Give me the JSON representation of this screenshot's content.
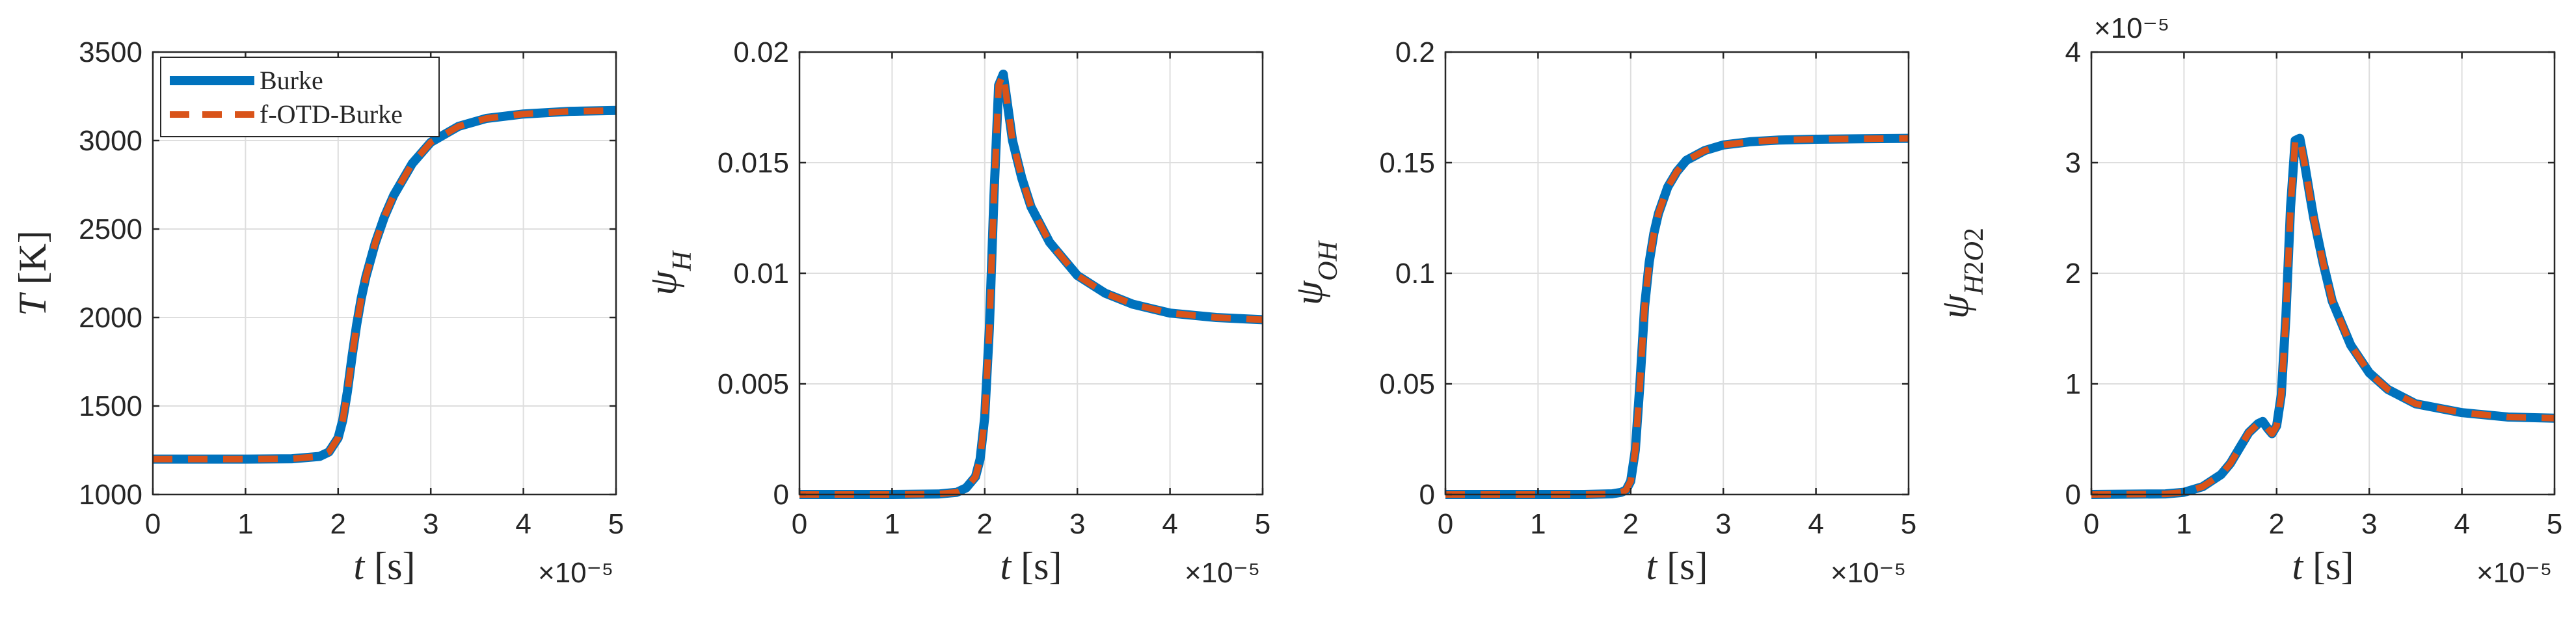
{
  "colors": {
    "burke": "#0072BD",
    "fotd": "#D95319",
    "grid": "#dedede",
    "axis": "#262626"
  },
  "chart_data": [
    {
      "type": "line",
      "xlabel": "t [s]",
      "ylabel": "T [K]",
      "x_multiplier": "×10⁻⁵",
      "xlim": [
        0,
        5
      ],
      "ylim": [
        1000,
        3500
      ],
      "xticks": [
        0,
        1,
        2,
        3,
        4,
        5
      ],
      "yticks": [
        1000,
        1500,
        2000,
        2500,
        3000,
        3500
      ],
      "ytick_labels": [
        "1000",
        "1500",
        "2000",
        "2500",
        "3000",
        "3500"
      ],
      "grid": true,
      "legend": {
        "position": "top-left",
        "entries": [
          "Burke",
          "f-OTD-Burke"
        ]
      },
      "series": [
        {
          "name": "Burke",
          "style": "solid",
          "x": [
            0,
            0.5,
            1.0,
            1.5,
            1.8,
            1.9,
            2.0,
            2.05,
            2.1,
            2.15,
            2.2,
            2.25,
            2.3,
            2.4,
            2.5,
            2.6,
            2.8,
            3.0,
            3.3,
            3.6,
            4.0,
            4.5,
            5.0
          ],
          "y": [
            1200,
            1200,
            1200,
            1202,
            1215,
            1240,
            1320,
            1420,
            1580,
            1780,
            1960,
            2110,
            2230,
            2420,
            2570,
            2690,
            2870,
            2990,
            3080,
            3125,
            3150,
            3165,
            3170
          ]
        },
        {
          "name": "f-OTD-Burke",
          "style": "dashed",
          "x": [
            0,
            0.5,
            1.0,
            1.5,
            1.8,
            1.9,
            2.0,
            2.05,
            2.1,
            2.15,
            2.2,
            2.25,
            2.3,
            2.4,
            2.5,
            2.6,
            2.8,
            3.0,
            3.3,
            3.6,
            4.0,
            4.5,
            5.0
          ],
          "y": [
            1200,
            1200,
            1200,
            1202,
            1215,
            1240,
            1320,
            1420,
            1580,
            1780,
            1960,
            2110,
            2230,
            2420,
            2570,
            2690,
            2870,
            2990,
            3080,
            3125,
            3150,
            3165,
            3170
          ]
        }
      ]
    },
    {
      "type": "line",
      "xlabel": "t [s]",
      "ylabel": "ψH",
      "x_multiplier": "×10⁻⁵",
      "xlim": [
        0,
        5
      ],
      "ylim": [
        0,
        0.02
      ],
      "xticks": [
        0,
        1,
        2,
        3,
        4,
        5
      ],
      "yticks": [
        0,
        0.005,
        0.01,
        0.015,
        0.02
      ],
      "ytick_labels": [
        "0",
        "0.005",
        "0.01",
        "0.015",
        "0.02"
      ],
      "grid": true,
      "series": [
        {
          "name": "Burke",
          "style": "solid",
          "x": [
            0,
            1.0,
            1.5,
            1.7,
            1.8,
            1.9,
            1.95,
            2.0,
            2.05,
            2.1,
            2.15,
            2.2,
            2.25,
            2.3,
            2.4,
            2.5,
            2.7,
            3.0,
            3.3,
            3.6,
            4.0,
            4.5,
            5.0
          ],
          "y": [
            0,
            0,
            2e-05,
            0.0001,
            0.0003,
            0.0008,
            0.0016,
            0.0035,
            0.0075,
            0.0135,
            0.0185,
            0.019,
            0.0175,
            0.016,
            0.0143,
            0.013,
            0.0114,
            0.0099,
            0.0091,
            0.0086,
            0.0082,
            0.008,
            0.0079
          ]
        },
        {
          "name": "f-OTD-Burke",
          "style": "dashed",
          "x": [
            0,
            1.0,
            1.5,
            1.7,
            1.8,
            1.9,
            1.95,
            2.0,
            2.05,
            2.1,
            2.15,
            2.2,
            2.25,
            2.3,
            2.4,
            2.5,
            2.7,
            3.0,
            3.3,
            3.6,
            4.0,
            4.5,
            5.0
          ],
          "y": [
            0,
            0,
            2e-05,
            0.0001,
            0.0003,
            0.0008,
            0.0016,
            0.0035,
            0.0075,
            0.0135,
            0.0185,
            0.019,
            0.0175,
            0.016,
            0.0143,
            0.013,
            0.0114,
            0.0099,
            0.0091,
            0.0086,
            0.0082,
            0.008,
            0.0079
          ]
        }
      ]
    },
    {
      "type": "line",
      "xlabel": "t [s]",
      "ylabel": "ψOH",
      "x_multiplier": "×10⁻⁵",
      "xlim": [
        0,
        5
      ],
      "ylim": [
        0,
        0.2
      ],
      "xticks": [
        0,
        1,
        2,
        3,
        4,
        5
      ],
      "yticks": [
        0,
        0.05,
        0.1,
        0.15,
        0.2
      ],
      "ytick_labels": [
        "0",
        "0.05",
        "0.1",
        "0.15",
        "0.2"
      ],
      "grid": true,
      "series": [
        {
          "name": "Burke",
          "style": "solid",
          "x": [
            0,
            1.0,
            1.5,
            1.8,
            1.9,
            1.95,
            2.0,
            2.05,
            2.1,
            2.15,
            2.2,
            2.25,
            2.3,
            2.4,
            2.5,
            2.6,
            2.8,
            3.0,
            3.3,
            3.6,
            4.0,
            4.5,
            5.0
          ],
          "y": [
            0,
            0,
            0,
            0.0003,
            0.001,
            0.002,
            0.006,
            0.02,
            0.05,
            0.085,
            0.105,
            0.118,
            0.127,
            0.139,
            0.146,
            0.151,
            0.1555,
            0.158,
            0.1595,
            0.1602,
            0.1606,
            0.1608,
            0.161
          ]
        },
        {
          "name": "f-OTD-Burke",
          "style": "dashed",
          "x": [
            0,
            1.0,
            1.5,
            1.8,
            1.9,
            1.95,
            2.0,
            2.05,
            2.1,
            2.15,
            2.2,
            2.25,
            2.3,
            2.4,
            2.5,
            2.6,
            2.8,
            3.0,
            3.3,
            3.6,
            4.0,
            4.5,
            5.0
          ],
          "y": [
            0,
            0,
            0,
            0.0003,
            0.001,
            0.002,
            0.006,
            0.02,
            0.05,
            0.085,
            0.105,
            0.118,
            0.127,
            0.139,
            0.146,
            0.151,
            0.1555,
            0.158,
            0.1595,
            0.1602,
            0.1606,
            0.1608,
            0.161
          ]
        }
      ]
    },
    {
      "type": "line",
      "xlabel": "t [s]",
      "ylabel": "ψH2O2",
      "x_multiplier": "×10⁻⁵",
      "y_multiplier": "×10⁻⁵",
      "xlim": [
        0,
        5
      ],
      "ylim": [
        0,
        4
      ],
      "xticks": [
        0,
        1,
        2,
        3,
        4,
        5
      ],
      "yticks": [
        0,
        1,
        2,
        3,
        4
      ],
      "ytick_labels": [
        "0",
        "1",
        "2",
        "3",
        "4"
      ],
      "grid": true,
      "series": [
        {
          "name": "Burke",
          "style": "solid",
          "x": [
            0,
            0.8,
            1.0,
            1.2,
            1.4,
            1.5,
            1.6,
            1.7,
            1.8,
            1.85,
            1.9,
            1.95,
            2.0,
            2.05,
            2.1,
            2.15,
            2.2,
            2.25,
            2.3,
            2.35,
            2.4,
            2.5,
            2.6,
            2.8,
            3.0,
            3.2,
            3.5,
            4.0,
            4.5,
            5.0
          ],
          "y": [
            0,
            0.005,
            0.02,
            0.07,
            0.18,
            0.28,
            0.42,
            0.56,
            0.64,
            0.66,
            0.6,
            0.55,
            0.62,
            0.9,
            1.6,
            2.6,
            3.2,
            3.22,
            3.0,
            2.75,
            2.5,
            2.1,
            1.75,
            1.35,
            1.1,
            0.95,
            0.82,
            0.74,
            0.7,
            0.69
          ]
        },
        {
          "name": "f-OTD-Burke",
          "style": "dashed",
          "x": [
            0,
            0.8,
            1.0,
            1.2,
            1.4,
            1.5,
            1.6,
            1.7,
            1.8,
            1.85,
            1.9,
            1.95,
            2.0,
            2.05,
            2.1,
            2.15,
            2.2,
            2.25,
            2.3,
            2.35,
            2.4,
            2.5,
            2.6,
            2.8,
            3.0,
            3.2,
            3.5,
            4.0,
            4.5,
            5.0
          ],
          "y": [
            0,
            0.005,
            0.02,
            0.07,
            0.18,
            0.28,
            0.42,
            0.56,
            0.64,
            0.66,
            0.6,
            0.55,
            0.62,
            0.9,
            1.6,
            2.6,
            3.2,
            3.22,
            3.0,
            2.75,
            2.5,
            2.1,
            1.75,
            1.35,
            1.1,
            0.95,
            0.82,
            0.74,
            0.7,
            0.69
          ]
        }
      ]
    }
  ]
}
